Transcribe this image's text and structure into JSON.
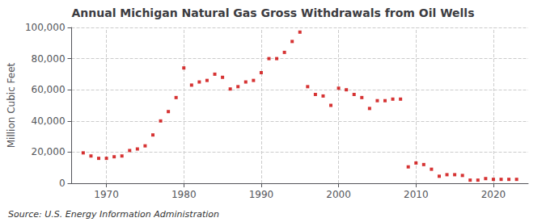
{
  "chart_data": {
    "type": "scatter",
    "title": "Annual Michigan Natural Gas Gross Withdrawals from Oil Wells",
    "ylabel": "Million Cubic Feet",
    "annotations": [
      "Source: U.S. Energy Information Administration"
    ],
    "color": "#cc0000",
    "marker": "square",
    "x": [
      1967,
      1968,
      1969,
      1970,
      1971,
      1972,
      1973,
      1974,
      1975,
      1976,
      1977,
      1978,
      1979,
      1980,
      1981,
      1982,
      1983,
      1984,
      1985,
      1986,
      1987,
      1988,
      1989,
      1990,
      1991,
      1992,
      1993,
      1994,
      1995,
      1996,
      1997,
      1998,
      1999,
      2000,
      2001,
      2002,
      2003,
      2004,
      2005,
      2006,
      2007,
      2008,
      2009,
      2010,
      2011,
      2012,
      2013,
      2014,
      2015,
      2016,
      2017,
      2018,
      2019,
      2020,
      2021,
      2022,
      2023
    ],
    "values": [
      19500,
      17500,
      16000,
      16000,
      17000,
      17500,
      21000,
      22000,
      24000,
      31000,
      40000,
      46000,
      55000,
      74000,
      63000,
      65000,
      66000,
      70000,
      68000,
      60500,
      62000,
      65000,
      66000,
      71000,
      80000,
      80000,
      84000,
      91000,
      97000,
      62000,
      57000,
      56000,
      50000,
      61000,
      60000,
      57000,
      55000,
      48000,
      53000,
      53000,
      54000,
      54000,
      10500,
      13000,
      12000,
      9000,
      4500,
      5500,
      5500,
      5000,
      2000,
      2000,
      3000,
      2500,
      2500,
      2500,
      2500
    ],
    "xlim": [
      1965.5,
      2024.5
    ],
    "xticks": [
      1970,
      1980,
      1990,
      2000,
      2010,
      2020
    ],
    "ylim": [
      0,
      100000
    ],
    "yticks": [
      0,
      {
        "value": 20000,
        "label": "20,000"
      },
      {
        "value": 40000,
        "label": "40,000"
      },
      {
        "value": 60000,
        "label": "60,000"
      },
      {
        "value": 80000,
        "label": "80,000"
      },
      {
        "value": 100000,
        "label": "100,000"
      }
    ],
    "grid": true
  }
}
